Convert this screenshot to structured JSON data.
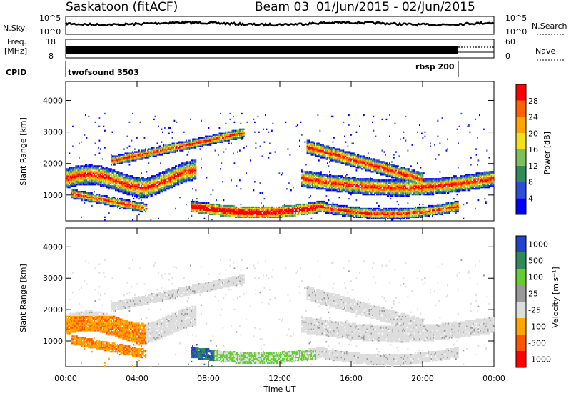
{
  "header": {
    "station": "Saskatoon (fitACF)",
    "beam": "Beam 03",
    "date_range": "01/Jun/2015 - 02/Jun/2015"
  },
  "nsky_panel": {
    "left_label": "N.Sky",
    "right_label": "N.Search",
    "left_ticks": [
      "10^5",
      "10^0"
    ],
    "right_ticks": [
      "10^5",
      "10^0"
    ]
  },
  "freq_panel": {
    "left_label_1": "Freq.",
    "left_label_2": "[MHz]",
    "right_label": "Nave",
    "left_ticks": [
      "18",
      "8"
    ],
    "right_ticks": [
      "60",
      "0"
    ]
  },
  "cpid_panel": {
    "label": "CPID",
    "segments": [
      {
        "name": "twofsound 3503",
        "start_hour": 0,
        "end_hour": 22
      },
      {
        "name": "rbsp 200",
        "start_hour": 22,
        "end_hour": 24
      }
    ]
  },
  "chart_data": [
    {
      "type": "heatmap",
      "name": "power",
      "ylabel": "Slant Range [km]",
      "ylim": [
        180,
        4600
      ],
      "yticks": [
        1000,
        2000,
        3000,
        4000
      ],
      "xlim_hours": [
        0,
        24
      ],
      "colorbar": {
        "label": "Power [dB]",
        "range": [
          0,
          32
        ],
        "ticks": [
          4,
          8,
          12,
          16,
          20,
          24,
          28
        ],
        "colors": [
          "#0000ff",
          "#2e4ed8",
          "#2f8b57",
          "#7fbf59",
          "#f0e020",
          "#ffa500",
          "#ff6000",
          "#ff0000"
        ]
      }
    },
    {
      "type": "heatmap",
      "name": "velocity",
      "ylabel": "Slant Range [km]",
      "ylim": [
        180,
        4600
      ],
      "yticks": [
        1000,
        2000,
        3000,
        4000
      ],
      "xlim_hours": [
        0,
        24
      ],
      "xticks": [
        "00:00",
        "04:00",
        "08:00",
        "12:00",
        "16:00",
        "20:00",
        "00:00"
      ],
      "xlabel": "Time UT",
      "colorbar": {
        "label": "Velocity [m s⁻¹]",
        "ticks": [
          "1000",
          "500",
          "100",
          "25",
          "-25",
          "-100",
          "-500",
          "-1000"
        ],
        "colors": [
          "#2244cc",
          "#2e8b57",
          "#66cc33",
          "#999999",
          "#dddddd",
          "#ffa500",
          "#ff5500",
          "#ff0000"
        ]
      }
    }
  ]
}
